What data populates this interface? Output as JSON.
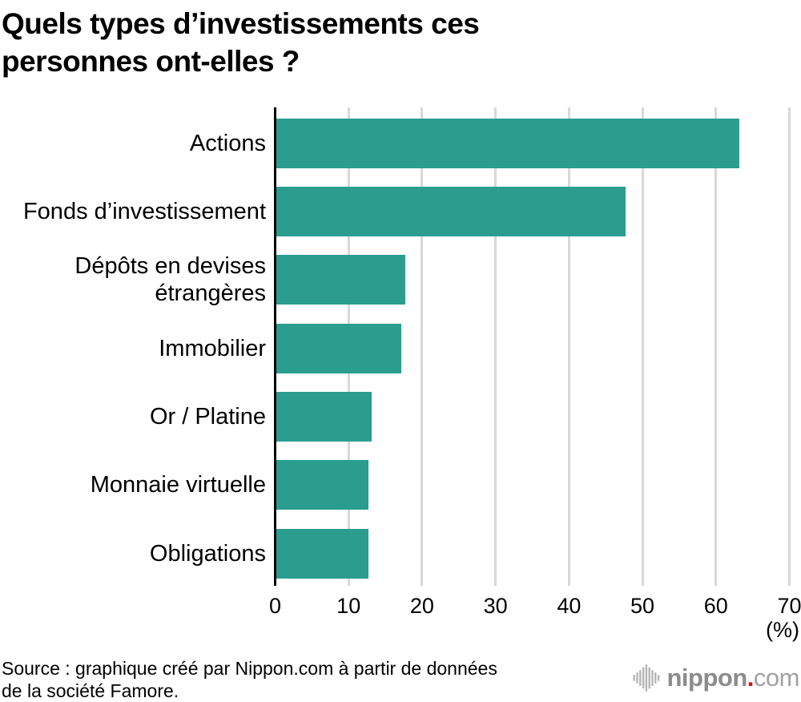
{
  "title_lines": [
    "Quels types d’investissements ces",
    "personnes ont-elles ?"
  ],
  "source_lines": [
    "Source : graphique créé par Nippon.com à partir de données",
    "de la société Famore."
  ],
  "logo": {
    "name": "nippon",
    "dot": ".",
    "tld": "com",
    "icon": "soundwave-icon"
  },
  "colors": {
    "bar": "#2a9d8f",
    "axis": "#000000",
    "gridline": "#d8d8d8",
    "text": "#000000",
    "logo_nippon_gray": "#8c8c8c",
    "logo_com_gray": "#a2a2a2",
    "logo_red": "#e60012",
    "logo_icon_gray": "#b5b5b5"
  },
  "chart_data": {
    "type": "bar",
    "orientation": "horizontal",
    "title": "Quels types d’investissements ces personnes ont-elles ?",
    "categories": [
      "Actions",
      "Fonds d’investissement",
      "Dépôts en devises étrangères",
      "Immobilier",
      "Or / Platine",
      "Monnaie virtuelle",
      "Obligations"
    ],
    "values": [
      63,
      47.5,
      17.5,
      17,
      13,
      12.5,
      12.5
    ],
    "xlim": [
      0,
      70
    ],
    "xticks": [
      0,
      10,
      20,
      30,
      40,
      50,
      60,
      70
    ],
    "xlabel": "(%)",
    "ylabel": "",
    "grid": true,
    "gridline_color": "#d8d8d8",
    "bar_color": "#2a9d8f",
    "legend": false
  }
}
